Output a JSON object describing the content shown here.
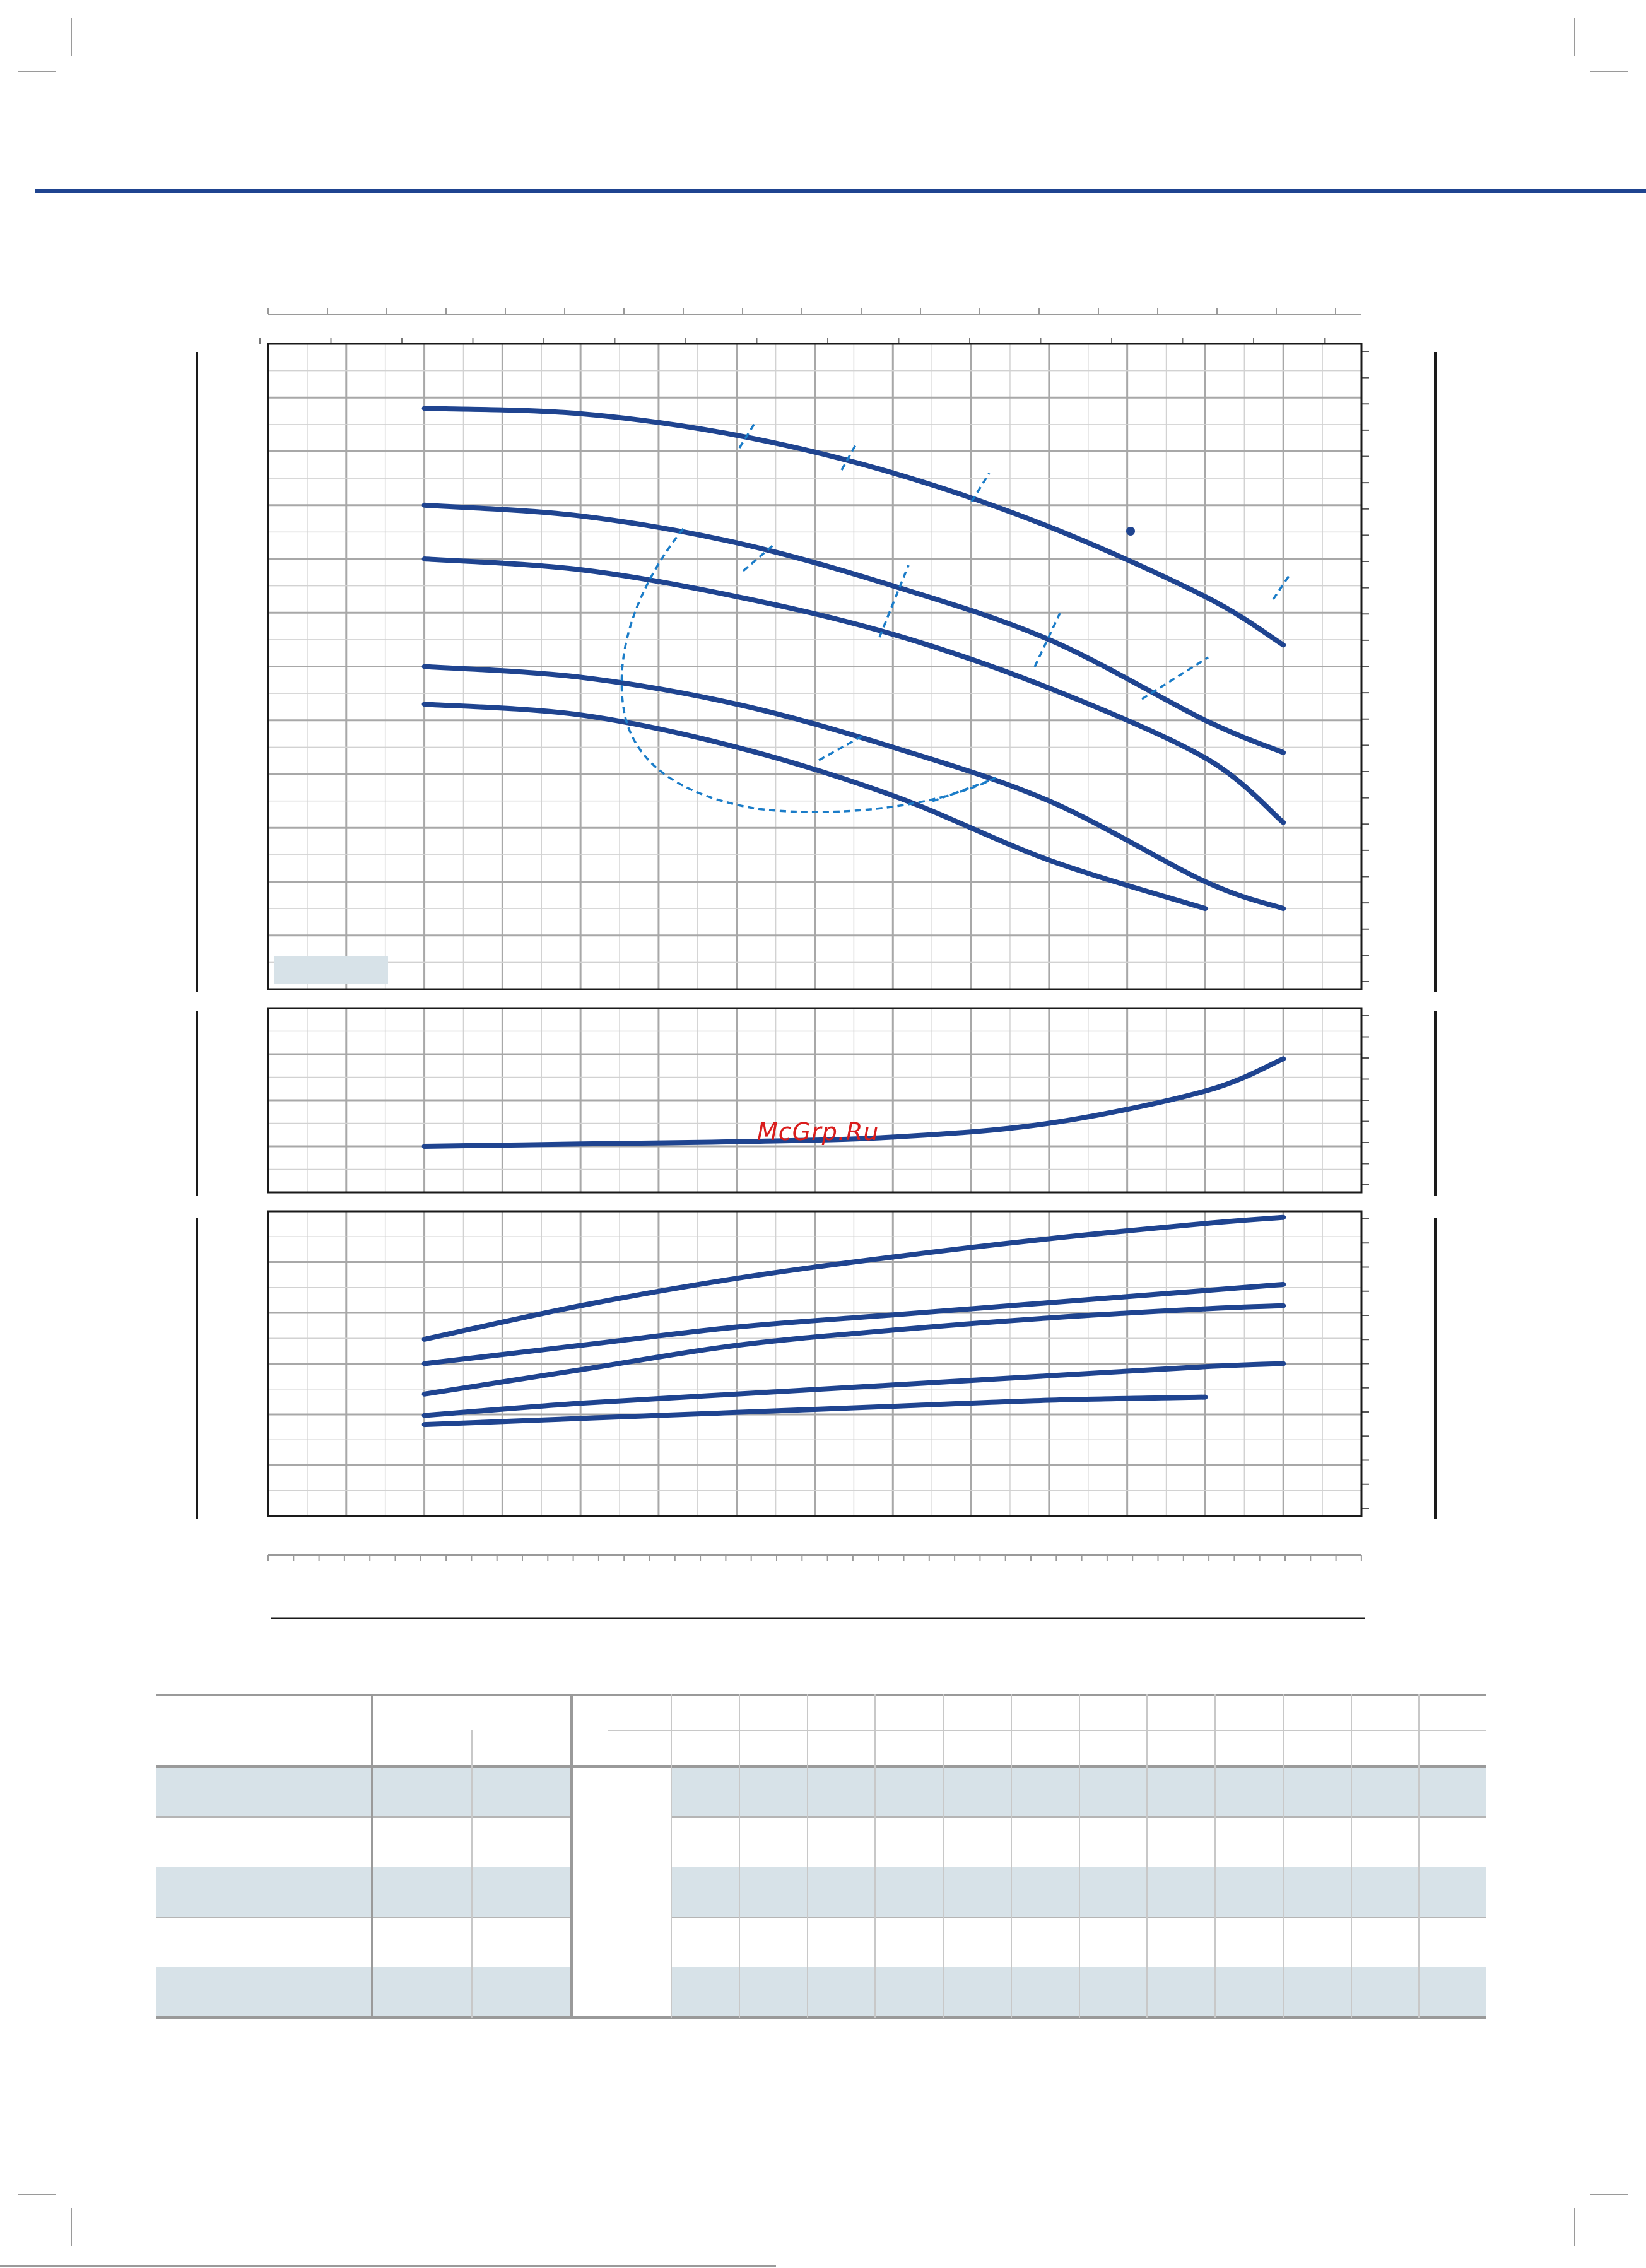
{
  "watermark": "McGrp.Ru",
  "colors": {
    "curve": "#1f4490",
    "efficiency": "#1a7cc8",
    "grid": "#b9b9b9",
    "frame": "#1a1a1a",
    "band": "#d7e2e8",
    "header_rule": "#1f4490",
    "watermark": "#d91c1c"
  },
  "chart_data": [
    {
      "type": "line",
      "name": "head",
      "xlim": [
        0,
        14
      ],
      "ylim": [
        0,
        12
      ],
      "grid": true,
      "series": [
        {
          "x": [
            2,
            4,
            6,
            8,
            10,
            12,
            13
          ],
          "values": [
            10.8,
            10.7,
            10.3,
            9.6,
            8.6,
            7.3,
            6.4
          ]
        },
        {
          "x": [
            2,
            4,
            6,
            8,
            10,
            12,
            13
          ],
          "values": [
            9.0,
            8.8,
            8.3,
            7.5,
            6.5,
            5.0,
            4.4
          ]
        },
        {
          "x": [
            2,
            4,
            6,
            8,
            10,
            12,
            13
          ],
          "values": [
            8.0,
            7.8,
            7.3,
            6.6,
            5.6,
            4.3,
            3.1
          ]
        },
        {
          "x": [
            2,
            4,
            6,
            8,
            10,
            12,
            13
          ],
          "values": [
            6.0,
            5.8,
            5.3,
            4.5,
            3.5,
            2.0,
            1.5
          ]
        },
        {
          "x": [
            2,
            4,
            6,
            8,
            10,
            12
          ],
          "values": [
            5.3,
            5.1,
            4.5,
            3.6,
            2.4,
            1.5
          ]
        }
      ],
      "efficiency_contour": true
    },
    {
      "type": "line",
      "name": "npsh",
      "xlim": [
        0,
        14
      ],
      "ylim": [
        0,
        4
      ],
      "grid": true,
      "series": [
        {
          "x": [
            2,
            4,
            6,
            8,
            10,
            12,
            13
          ],
          "values": [
            1.0,
            1.05,
            1.1,
            1.2,
            1.5,
            2.2,
            2.9
          ]
        }
      ]
    },
    {
      "type": "line",
      "name": "power",
      "xlim": [
        0,
        14
      ],
      "ylim": [
        0,
        10
      ],
      "grid": true,
      "series": [
        {
          "x": [
            2,
            4,
            6,
            8,
            10,
            12,
            13
          ],
          "values": [
            5.8,
            6.9,
            7.8,
            8.5,
            9.1,
            9.6,
            9.8
          ]
        },
        {
          "x": [
            2,
            4,
            6,
            8,
            10,
            12,
            13
          ],
          "values": [
            5.0,
            5.6,
            6.2,
            6.6,
            7.0,
            7.4,
            7.6
          ]
        },
        {
          "x": [
            2,
            4,
            6,
            8,
            10,
            12,
            13
          ],
          "values": [
            4.0,
            4.8,
            5.6,
            6.1,
            6.5,
            6.8,
            6.9
          ]
        },
        {
          "x": [
            2,
            4,
            6,
            8,
            10,
            12,
            13
          ],
          "values": [
            3.3,
            3.7,
            4.0,
            4.3,
            4.6,
            4.9,
            5.0
          ]
        },
        {
          "x": [
            2,
            4,
            6,
            8,
            10,
            12
          ],
          "values": [
            3.0,
            3.2,
            3.4,
            3.6,
            3.8,
            3.9
          ]
        }
      ]
    }
  ],
  "table": {
    "header_rows": 2,
    "body_rows": 5,
    "columns": 14
  }
}
